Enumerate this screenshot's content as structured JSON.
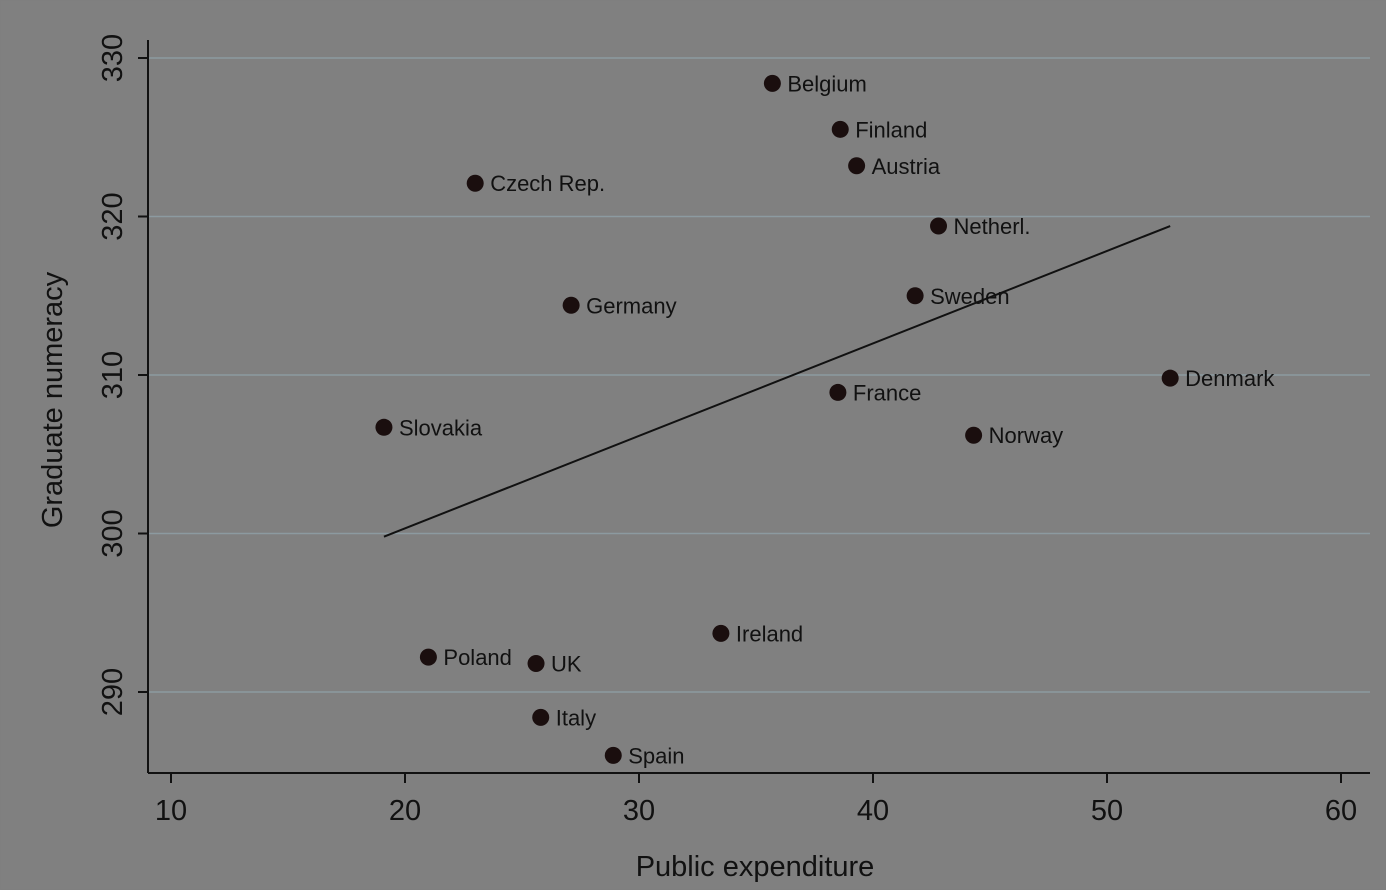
{
  "chart_data": {
    "type": "scatter",
    "title": "",
    "xlabel": "Public expenditure",
    "ylabel": "Graduate numeracy",
    "xlim": [
      9,
      61
    ],
    "ylim": [
      285,
      331
    ],
    "xticks": [
      10,
      20,
      30,
      40,
      50,
      60
    ],
    "yticks": [
      290,
      300,
      310,
      320,
      330
    ],
    "grid": "horizontal",
    "points": [
      {
        "label": "Belgium",
        "x": 35.7,
        "y": 328.4
      },
      {
        "label": "Finland",
        "x": 38.6,
        "y": 325.5
      },
      {
        "label": "Austria",
        "x": 39.3,
        "y": 323.2
      },
      {
        "label": "Czech Rep.",
        "x": 23.0,
        "y": 322.1
      },
      {
        "label": "Netherl.",
        "x": 42.8,
        "y": 319.4
      },
      {
        "label": "Germany",
        "x": 27.1,
        "y": 314.4
      },
      {
        "label": "Sweden",
        "x": 41.8,
        "y": 315.0
      },
      {
        "label": "Denmark",
        "x": 52.7,
        "y": 309.8
      },
      {
        "label": "France",
        "x": 38.5,
        "y": 308.9
      },
      {
        "label": "Slovakia",
        "x": 19.1,
        "y": 306.7
      },
      {
        "label": "Norway",
        "x": 44.3,
        "y": 306.2
      },
      {
        "label": "Ireland",
        "x": 33.5,
        "y": 293.7
      },
      {
        "label": "Poland",
        "x": 21.0,
        "y": 292.2
      },
      {
        "label": "UK",
        "x": 25.6,
        "y": 291.8
      },
      {
        "label": "Italy",
        "x": 25.8,
        "y": 288.4
      },
      {
        "label": "Spain",
        "x": 28.9,
        "y": 286.0
      }
    ],
    "fit_line": {
      "x": [
        19.1,
        52.7
      ],
      "y": [
        299.8,
        319.4
      ]
    }
  },
  "colors": {
    "plot_background": "#808080",
    "frame": "#7f7f7f",
    "grid": "#8c9aa0",
    "marker": "#1a0e0e",
    "fit_line": "#111111",
    "text": "#111111"
  }
}
